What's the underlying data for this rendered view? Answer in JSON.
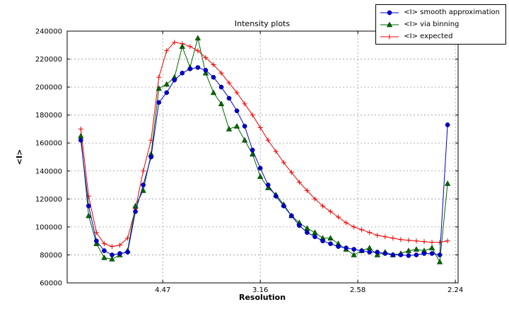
{
  "figure": {
    "background": "#ffffff"
  },
  "chart_data": {
    "type": "line",
    "title": "Intensity plots",
    "xlabel": "Resolution",
    "ylabel": "<I>",
    "xlim": [
      0.001,
      0.2014
    ],
    "ylim": [
      60000,
      240000
    ],
    "grid": true,
    "grid_style": "dashed",
    "grid_color": "#999999",
    "legend_position": "upper right",
    "xticks": [
      {
        "value": 0.05,
        "label": "4.47"
      },
      {
        "value": 0.1,
        "label": "3.16"
      },
      {
        "value": 0.15,
        "label": "2.58"
      },
      {
        "value": 0.2,
        "label": "2.24"
      }
    ],
    "yticks": [
      60000,
      80000,
      100000,
      120000,
      140000,
      160000,
      180000,
      200000,
      220000,
      240000
    ],
    "x": [
      0.008,
      0.012,
      0.016,
      0.02,
      0.024,
      0.028,
      0.032,
      0.036,
      0.04,
      0.044,
      0.048,
      0.052,
      0.056,
      0.06,
      0.064,
      0.068,
      0.072,
      0.076,
      0.08,
      0.084,
      0.088,
      0.092,
      0.096,
      0.1,
      0.104,
      0.108,
      0.112,
      0.116,
      0.12,
      0.124,
      0.128,
      0.132,
      0.136,
      0.14,
      0.144,
      0.148,
      0.152,
      0.156,
      0.16,
      0.164,
      0.168,
      0.172,
      0.176,
      0.18,
      0.184,
      0.188,
      0.192,
      0.196
    ],
    "series": [
      {
        "name": "<I> smooth approximation",
        "color": "#0000cc",
        "marker": "circle",
        "values": [
          162000,
          115000,
          90000,
          83000,
          80000,
          81000,
          82000,
          111000,
          130000,
          150000,
          189000,
          196000,
          205000,
          210000,
          213000,
          214000,
          212000,
          207000,
          200000,
          192000,
          183000,
          172000,
          155000,
          142000,
          130000,
          122000,
          115000,
          108000,
          101000,
          96000,
          93000,
          90000,
          88000,
          86000,
          85000,
          84000,
          83000,
          82000,
          82000,
          81000,
          80000,
          80000,
          79500,
          80000,
          81000,
          81000,
          80000,
          173000
        ]
      },
      {
        "name": "<I> via binning",
        "color": "#006600",
        "marker": "triangle",
        "values": [
          165000,
          108000,
          88000,
          78000,
          77000,
          80000,
          83000,
          115000,
          126000,
          152000,
          199000,
          202000,
          207000,
          229000,
          214000,
          235000,
          210000,
          196000,
          188000,
          170000,
          172000,
          162000,
          152000,
          136000,
          128000,
          123000,
          116000,
          108000,
          103000,
          99000,
          96000,
          92000,
          92000,
          88000,
          84000,
          80000,
          83000,
          85000,
          80000,
          82000,
          80000,
          81000,
          83000,
          84000,
          83000,
          85000,
          75000,
          131000
        ]
      },
      {
        "name": "<I> expected",
        "color": "#ee0000",
        "marker": "plus",
        "values": [
          170000,
          122000,
          96000,
          88000,
          86000,
          87000,
          92000,
          113000,
          140000,
          162000,
          207000,
          226000,
          232000,
          231000,
          229000,
          226000,
          221000,
          216000,
          210000,
          203000,
          196000,
          188000,
          180000,
          171000,
          162000,
          154000,
          146000,
          139000,
          132000,
          126000,
          120000,
          115000,
          111000,
          107000,
          103000,
          100000,
          98000,
          96000,
          94000,
          93000,
          92000,
          91000,
          90500,
          90000,
          89500,
          89000,
          89000,
          90000
        ]
      }
    ]
  }
}
